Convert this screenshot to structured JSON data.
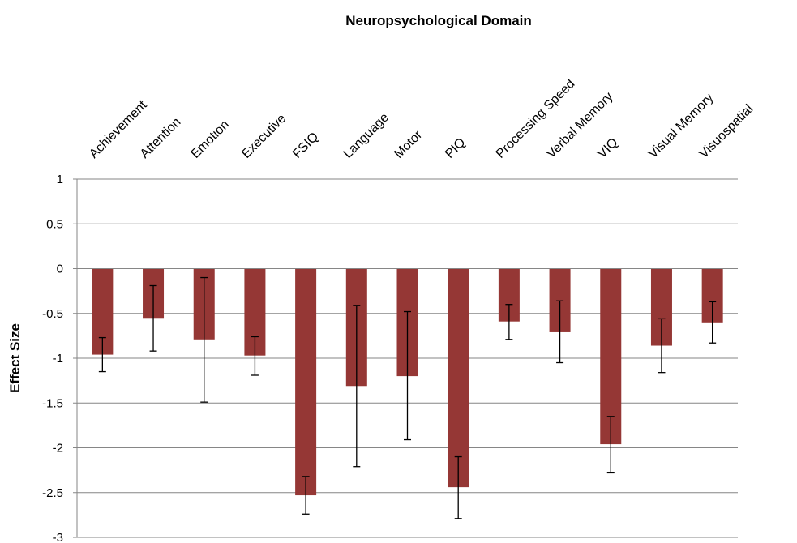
{
  "chart_data": {
    "type": "bar",
    "title": "Neuropsychological Domain",
    "xlabel": "",
    "ylabel": "Effect Size",
    "ylim": [
      -3,
      1
    ],
    "yticks": [
      1,
      0.5,
      0,
      -0.5,
      -1,
      -1.5,
      -2,
      -2.5,
      -3
    ],
    "grid": true,
    "bar_color": "#953735",
    "categories": [
      "Achievement",
      "Attention",
      "Emotion",
      "Executive",
      "FSIQ",
      "Language",
      "Motor",
      "PIQ",
      "Processing Speed",
      "Verbal Memory",
      "VIQ",
      "Visual Memory",
      "Visuospatial"
    ],
    "values": [
      -0.96,
      -0.55,
      -0.79,
      -0.97,
      -2.53,
      -1.31,
      -1.2,
      -2.44,
      -0.59,
      -0.71,
      -1.96,
      -0.86,
      -0.6
    ],
    "error_low": [
      -1.15,
      -0.92,
      -1.49,
      -1.19,
      -2.74,
      -2.21,
      -1.91,
      -2.79,
      -0.79,
      -1.05,
      -2.28,
      -1.16,
      -0.83
    ],
    "error_high": [
      -0.77,
      -0.19,
      -0.1,
      -0.76,
      -2.32,
      -0.41,
      -0.48,
      -2.1,
      -0.4,
      -0.36,
      -1.65,
      -0.56,
      -0.37
    ]
  }
}
